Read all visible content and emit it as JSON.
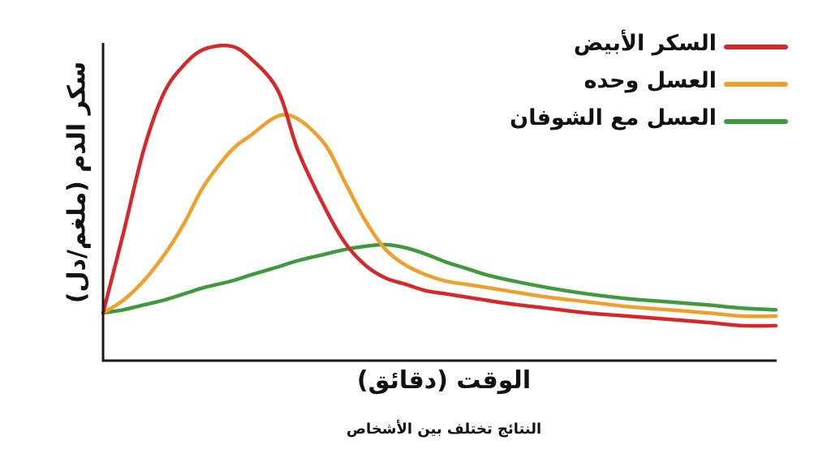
{
  "chart_data": {
    "type": "line",
    "title": "",
    "xlabel": "الوقت (دقائق)",
    "ylabel": "سكر الدم (ملغم/دل)",
    "footnote": "النتائج تختلف بين الأشخاص",
    "x_ticks": [],
    "y_ticks": [],
    "grid": false,
    "legend_position": "top-right",
    "xlim": [
      0,
      100
    ],
    "ylim": [
      0,
      100
    ],
    "x": [
      0,
      3,
      6,
      9,
      12,
      15,
      19,
      22,
      26,
      29,
      33,
      36,
      39,
      42,
      45,
      48,
      51,
      54,
      57,
      60,
      66,
      72,
      78,
      84,
      90,
      95,
      100
    ],
    "series": [
      {
        "name": "السكر الأبيض",
        "color": "#d9262b",
        "values": [
          15,
          40,
          66,
          84,
          93,
          98,
          99,
          95,
          85,
          66,
          48,
          37,
          30,
          26,
          24,
          22,
          21,
          20,
          19,
          18,
          16.5,
          15,
          14,
          13,
          12,
          11,
          11
        ]
      },
      {
        "name": "العسل وحده",
        "color": "#f0a02a",
        "values": [
          15,
          19,
          25,
          33,
          43,
          55,
          66,
          71,
          77,
          76,
          68,
          56,
          44,
          35,
          30,
          27,
          25,
          24,
          23,
          22,
          20,
          18.5,
          17,
          16,
          15,
          14,
          14
        ]
      },
      {
        "name": "العسل مع الشوفان",
        "color": "#3f9a3e",
        "values": [
          15,
          16,
          17.5,
          19,
          21,
          23,
          25,
          27,
          29.5,
          31.5,
          33.5,
          35,
          36,
          36.5,
          35.5,
          33.5,
          31,
          29,
          27,
          25.5,
          23,
          21,
          19.5,
          18.5,
          17.5,
          16.5,
          16
        ]
      }
    ]
  },
  "legend": {
    "items": [
      {
        "label": "السكر الأبيض",
        "color": "#d9262b"
      },
      {
        "label": "العسل وحده",
        "color": "#f0a02a"
      },
      {
        "label": "العسل مع الشوفان",
        "color": "#3f9a3e"
      }
    ]
  },
  "axes": {
    "color": "#1a1a1a"
  }
}
